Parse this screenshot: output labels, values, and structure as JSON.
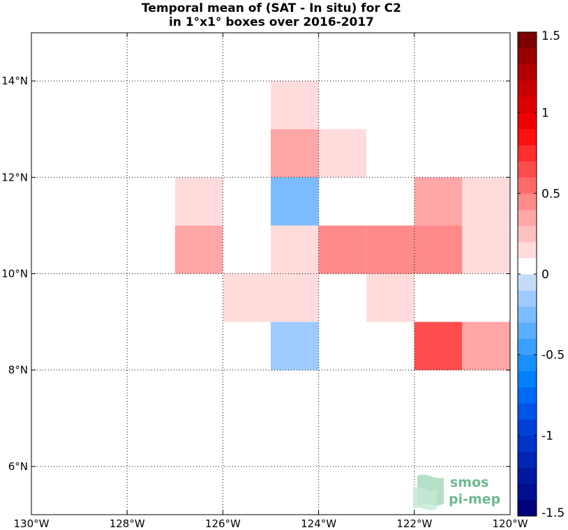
{
  "title": {
    "line1": "Temporal mean of (SAT - In situ) for C2",
    "line2": "in 1°x1° boxes over 2016-2017"
  },
  "logo": {
    "line1": "smos",
    "line2": "pi-mep"
  },
  "chart_data": {
    "type": "heatmap",
    "title": "Temporal mean of (SAT - In situ) for C2 in 1°x1° boxes over 2016-2017",
    "xlabel": "",
    "ylabel": "",
    "xlim": [
      -130,
      -120
    ],
    "ylim": [
      5,
      15
    ],
    "grid": true,
    "x_ticks": [
      -130,
      -128,
      -126,
      -124,
      -122,
      -120
    ],
    "x_tick_labels": [
      "130°W",
      "128°W",
      "126°W",
      "124°W",
      "122°W",
      "120°W"
    ],
    "y_ticks": [
      6,
      8,
      10,
      12,
      14
    ],
    "y_tick_labels": [
      "6°N",
      "8°N",
      "10°N",
      "12°N",
      "14°N"
    ],
    "colorbar": {
      "range": [
        -1.5,
        1.5
      ],
      "levels": 30,
      "tick_values": [
        1.5,
        1,
        0.5,
        0,
        -0.5,
        -1,
        -1.5
      ],
      "tick_labels": [
        "1.5",
        "1",
        "0.5",
        "0",
        "-0.5",
        "-1",
        "-1.5"
      ],
      "colors": [
        "#00007a",
        "#000e8f",
        "#0019a0",
        "#0026b3",
        "#0034c6",
        "#0042d8",
        "#0055e8",
        "#0069f5",
        "#0080ff",
        "#1a90ff",
        "#3aa0ff",
        "#5aaeff",
        "#7bbcff",
        "#9dcbff",
        "#c4dcf7",
        "#ffffff",
        "#ffdcdc",
        "#ffc0c0",
        "#ffa6a6",
        "#ff8a8a",
        "#ff6b6b",
        "#ff4c4c",
        "#ff2e2e",
        "#ff1010",
        "#f00000",
        "#dd0000",
        "#c80000",
        "#b20000",
        "#9a0000",
        "#7d0000"
      ]
    },
    "cells": [
      {
        "lon": -125,
        "lat": 13,
        "value": 0.15
      },
      {
        "lon": -125,
        "lat": 12,
        "value": 0.3
      },
      {
        "lon": -124,
        "lat": 12,
        "value": 0.15
      },
      {
        "lon": -127,
        "lat": 11,
        "value": 0.15
      },
      {
        "lon": -125,
        "lat": 11,
        "value": -0.25
      },
      {
        "lon": -122,
        "lat": 11,
        "value": 0.3
      },
      {
        "lon": -121,
        "lat": 11,
        "value": 0.15
      },
      {
        "lon": -127,
        "lat": 10,
        "value": 0.3
      },
      {
        "lon": -125,
        "lat": 10,
        "value": 0.15
      },
      {
        "lon": -124,
        "lat": 10,
        "value": 0.45
      },
      {
        "lon": -123,
        "lat": 10,
        "value": 0.45
      },
      {
        "lon": -122,
        "lat": 10,
        "value": 0.45
      },
      {
        "lon": -121,
        "lat": 10,
        "value": 0.15
      },
      {
        "lon": -126,
        "lat": 9,
        "value": 0.15
      },
      {
        "lon": -125,
        "lat": 9,
        "value": 0.15
      },
      {
        "lon": -123,
        "lat": 9,
        "value": 0.15
      },
      {
        "lon": -125,
        "lat": 8,
        "value": -0.15
      },
      {
        "lon": -122,
        "lat": 8,
        "value": 0.6
      },
      {
        "lon": -121,
        "lat": 8,
        "value": 0.3
      }
    ]
  }
}
